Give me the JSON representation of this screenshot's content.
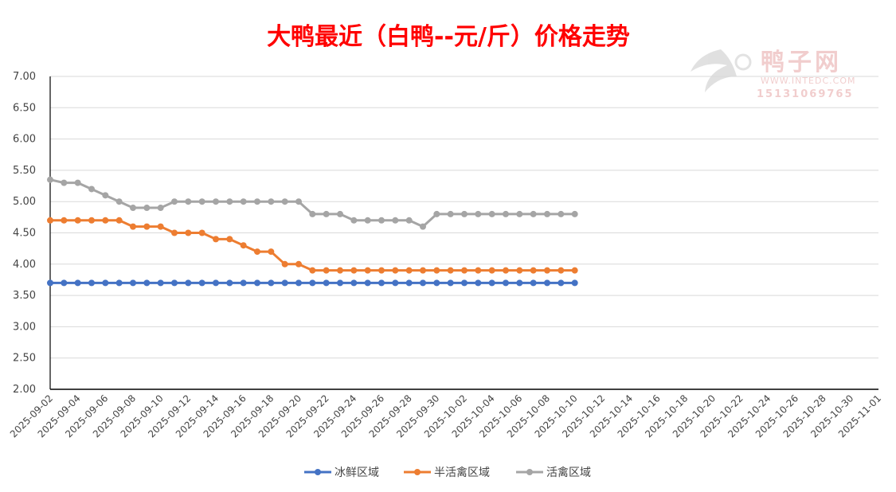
{
  "chart_data": {
    "type": "line",
    "title": "大鸭最近（白鸭--元/斤）价格走势",
    "title_color": "#ff0000",
    "xlabel": "",
    "ylabel": "",
    "ylim": [
      2.0,
      7.0
    ],
    "y_ticks": [
      "2.00",
      "2.50",
      "3.00",
      "3.50",
      "4.00",
      "4.50",
      "5.00",
      "5.50",
      "6.00",
      "6.50",
      "7.00"
    ],
    "x_start": "2025-09-02",
    "x_end": "2025-11-01",
    "x_ticks": [
      "2025-09-02",
      "2025-09-04",
      "2025-09-06",
      "2025-09-08",
      "2025-09-10",
      "2025-09-12",
      "2025-09-14",
      "2025-09-16",
      "2025-09-18",
      "2025-09-20",
      "2025-09-22",
      "2025-09-24",
      "2025-09-26",
      "2025-09-28",
      "2025-09-30",
      "2025-10-02",
      "2025-10-04",
      "2025-10-06",
      "2025-10-08",
      "2025-10-10",
      "2025-10-12",
      "2025-10-14",
      "2025-10-16",
      "2025-10-18",
      "2025-10-20",
      "2025-10-22",
      "2025-10-24",
      "2025-10-26",
      "2025-10-28",
      "2025-10-30",
      "2025-11-01"
    ],
    "grid": true,
    "legend_position": "bottom",
    "series": [
      {
        "name": "冰鲜区域",
        "color": "#4472c4",
        "values": [
          3.7,
          3.7,
          3.7,
          3.7,
          3.7,
          3.7,
          3.7,
          3.7,
          3.7,
          3.7,
          3.7,
          3.7,
          3.7,
          3.7,
          3.7,
          3.7,
          3.7,
          3.7,
          3.7,
          3.7,
          3.7,
          3.7,
          3.7,
          3.7,
          3.7,
          3.7,
          3.7,
          3.7,
          3.7,
          3.7,
          3.7,
          3.7,
          3.7,
          3.7,
          3.7,
          3.7,
          3.7,
          3.7,
          3.7
        ]
      },
      {
        "name": "半活禽区域",
        "color": "#ed7d31",
        "values": [
          4.7,
          4.7,
          4.7,
          4.7,
          4.7,
          4.7,
          4.6,
          4.6,
          4.6,
          4.5,
          4.5,
          4.5,
          4.4,
          4.4,
          4.3,
          4.2,
          4.2,
          4.0,
          4.0,
          3.9,
          3.9,
          3.9,
          3.9,
          3.9,
          3.9,
          3.9,
          3.9,
          3.9,
          3.9,
          3.9,
          3.9,
          3.9,
          3.9,
          3.9,
          3.9,
          3.9,
          3.9,
          3.9,
          3.9
        ]
      },
      {
        "name": "活禽区域",
        "color": "#a5a5a5",
        "values": [
          5.35,
          5.3,
          5.3,
          5.2,
          5.1,
          5.0,
          4.9,
          4.9,
          4.9,
          5.0,
          5.0,
          5.0,
          5.0,
          5.0,
          5.0,
          5.0,
          5.0,
          5.0,
          5.0,
          4.8,
          4.8,
          4.8,
          4.7,
          4.7,
          4.7,
          4.7,
          4.7,
          4.6,
          4.8,
          4.8,
          4.8,
          4.8,
          4.8,
          4.8,
          4.8,
          4.8,
          4.8,
          4.8,
          4.8
        ]
      }
    ]
  },
  "watermark": {
    "brand": "鸭子网",
    "url": "WWW.INTEDC.COM",
    "phone": "15131069765",
    "color": "#e8a8a8"
  }
}
